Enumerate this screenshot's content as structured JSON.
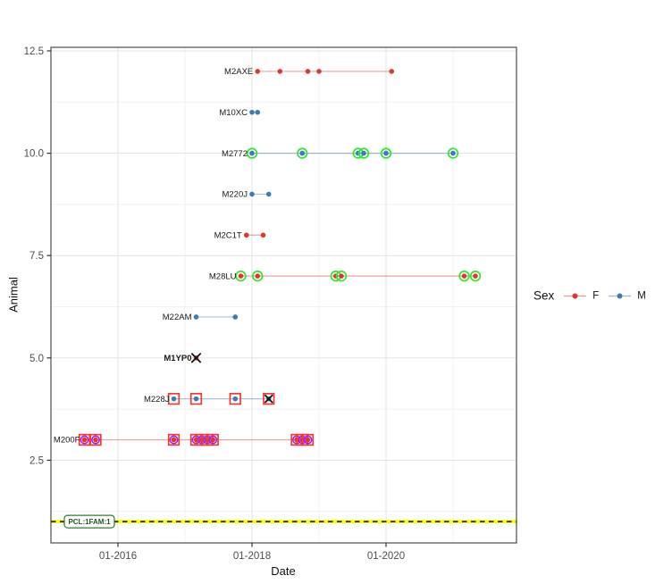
{
  "chart_data": {
    "type": "scatter",
    "title": "",
    "xlabel": "Date",
    "ylabel": "Animal",
    "x_ticks": [
      {
        "label": "01-2016",
        "date": "2016-01"
      },
      {
        "label": "01-2018",
        "date": "2018-01"
      },
      {
        "label": "01-2020",
        "date": "2020-01"
      }
    ],
    "y_ticks": [
      {
        "label": "12.5",
        "value": 12.5
      },
      {
        "label": "10.0",
        "value": 10.0
      },
      {
        "label": "7.5",
        "value": 7.5
      },
      {
        "label": "5.0",
        "value": 5.0
      },
      {
        "label": "2.5",
        "value": 2.5
      }
    ],
    "grid": {
      "x_minor_dates": [
        "2017-01",
        "2019-01",
        "2021-01"
      ],
      "y_minor_values": [
        11.25,
        8.75,
        6.25,
        3.75,
        1.25
      ]
    },
    "x_range_dates": [
      "2015-01",
      "2021-12"
    ],
    "ylim": [
      0.45,
      12.72
    ],
    "legend": {
      "title": "Sex",
      "entries": [
        {
          "label": "F",
          "color": "#e2362c"
        },
        {
          "label": "M",
          "color": "#3d7ab8"
        }
      ]
    },
    "hline": {
      "y": 1,
      "label": "PCL:1FAM:1",
      "line_color": "#ffff00",
      "dash_color": "#000000",
      "label_border_color": "#2e7d32",
      "label_text_color": "#1b5e20"
    },
    "series": [
      {
        "label": "M2AXE",
        "y": 12,
        "sex": "F",
        "bold": false,
        "points": [
          {
            "date": "2018-02"
          },
          {
            "date": "2018-06"
          },
          {
            "date": "2018-11"
          },
          {
            "date": "2019-01"
          },
          {
            "date": "2020-02"
          }
        ]
      },
      {
        "label": "M10XC",
        "y": 11,
        "sex": "M",
        "bold": false,
        "points": [
          {
            "date": "2018-01"
          },
          {
            "date": "2018-02"
          }
        ]
      },
      {
        "label": "M2772",
        "y": 10,
        "sex": "M",
        "bold": false,
        "points": [
          {
            "date": "2018-01",
            "overlays": [
              "green-ring"
            ]
          },
          {
            "date": "2018-10",
            "overlays": [
              "green-ring"
            ]
          },
          {
            "date": "2019-08",
            "overlays": [
              "green-ring"
            ]
          },
          {
            "date": "2019-09",
            "overlays": [
              "green-ring"
            ]
          },
          {
            "date": "2020-01",
            "overlays": [
              "green-ring"
            ]
          },
          {
            "date": "2021-01",
            "overlays": [
              "green-ring"
            ]
          }
        ]
      },
      {
        "label": "M220J",
        "y": 9,
        "sex": "M",
        "bold": false,
        "points": [
          {
            "date": "2018-01"
          },
          {
            "date": "2018-04"
          }
        ]
      },
      {
        "label": "M2C1T",
        "y": 8,
        "sex": "F",
        "bold": false,
        "points": [
          {
            "date": "2017-12"
          },
          {
            "date": "2018-03"
          }
        ]
      },
      {
        "label": "M28LU",
        "y": 7,
        "sex": "F",
        "bold": false,
        "points": [
          {
            "date": "2017-11",
            "overlays": [
              "green-ring"
            ]
          },
          {
            "date": "2018-02",
            "overlays": [
              "green-ring"
            ]
          },
          {
            "date": "2019-04",
            "overlays": [
              "green-ring"
            ]
          },
          {
            "date": "2019-05",
            "overlays": [
              "green-ring"
            ]
          },
          {
            "date": "2021-03",
            "overlays": [
              "green-ring"
            ]
          },
          {
            "date": "2021-05",
            "overlays": [
              "green-ring"
            ]
          }
        ]
      },
      {
        "label": "M22AM",
        "y": 6,
        "sex": "M",
        "bold": false,
        "points": [
          {
            "date": "2017-03"
          },
          {
            "date": "2017-10"
          }
        ]
      },
      {
        "label": "M1YP0",
        "y": 5,
        "sex": "F",
        "bold": true,
        "points": [
          {
            "date": "2017-03",
            "overlays": [
              "black-x"
            ]
          }
        ]
      },
      {
        "label": "M228J",
        "y": 4,
        "sex": "M",
        "bold": false,
        "points": [
          {
            "date": "2016-11",
            "overlays": [
              "red-square"
            ]
          },
          {
            "date": "2017-03",
            "overlays": [
              "red-square"
            ]
          },
          {
            "date": "2017-10",
            "overlays": [
              "red-square"
            ]
          },
          {
            "date": "2018-04",
            "overlays": [
              "red-square",
              "black-x"
            ]
          }
        ]
      },
      {
        "label": "M200F",
        "y": 3,
        "sex": "F",
        "bold": false,
        "points": [
          {
            "date": "2015-07",
            "overlays": [
              "red-square",
              "purple-ring"
            ]
          },
          {
            "date": "2015-09",
            "overlays": [
              "red-square",
              "purple-ring"
            ]
          },
          {
            "date": "2016-11",
            "overlays": [
              "red-square",
              "purple-ring"
            ]
          },
          {
            "date": "2017-03",
            "overlays": [
              "red-square",
              "purple-ring"
            ]
          },
          {
            "date": "2017-04",
            "overlays": [
              "red-square",
              "purple-ring"
            ]
          },
          {
            "date": "2017-05",
            "overlays": [
              "red-square",
              "purple-ring"
            ]
          },
          {
            "date": "2017-06",
            "overlays": [
              "red-square",
              "purple-ring"
            ]
          },
          {
            "date": "2018-09",
            "overlays": [
              "red-square",
              "purple-ring"
            ]
          },
          {
            "date": "2018-10",
            "overlays": [
              "red-square",
              "purple-ring"
            ]
          },
          {
            "date": "2018-11",
            "overlays": [
              "red-square",
              "purple-ring"
            ]
          }
        ]
      }
    ]
  },
  "colors": {
    "female": "#e2362c",
    "male": "#3d7ab8",
    "green_ring": "#35e835",
    "purple_ring": "#a020f0",
    "red_square": "#f23b2e",
    "black_x": "#141414",
    "grid_major": "#e3e3e3",
    "grid_minor": "#f1f1f1",
    "panel_border": "#4d4d4d",
    "tick_mark": "#333333",
    "tick_text": "#4d4d4d",
    "series_label_text": "#1a1a1a"
  }
}
